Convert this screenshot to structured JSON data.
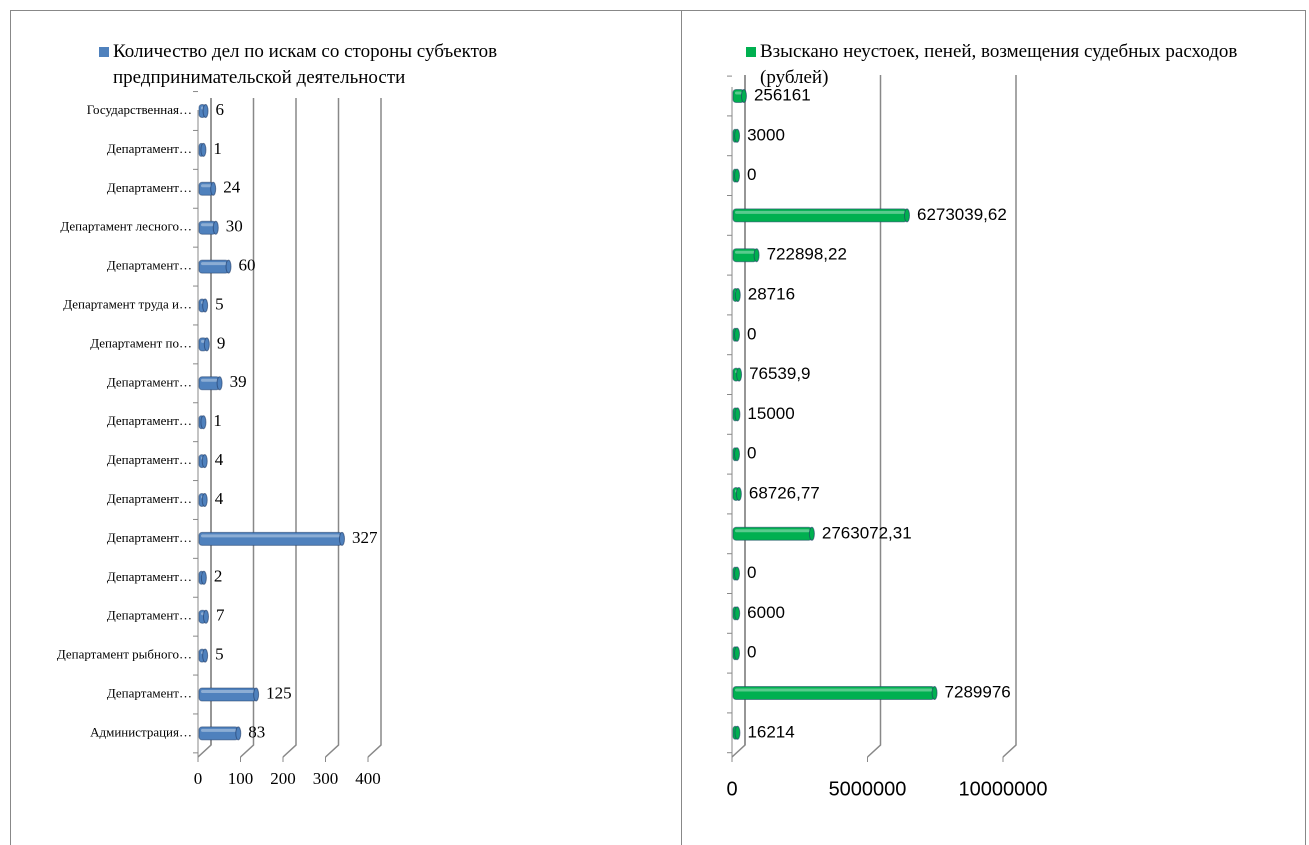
{
  "chart_data": [
    {
      "type": "bar",
      "orientation": "horizontal",
      "categories": [
        "Государственная…",
        "Департамент…",
        "Департамент…",
        "Департамент лесного…",
        "Департамент…",
        "Департамент труда и…",
        "Департамент по…",
        "Департамент…",
        "Департамент…",
        "Департамент…",
        "Департамент…",
        "Департамент…",
        "Департамент…",
        "Департамент…",
        "Департамент рыбного…",
        "Департамент…",
        "Администрация…"
      ],
      "series": [
        {
          "name": "Количество дел по искам со стороны субъектов предпринимательской деятельности",
          "color": "#4f81bd",
          "values": [
            6,
            1,
            24,
            30,
            60,
            5,
            9,
            39,
            1,
            4,
            4,
            327,
            2,
            7,
            5,
            125,
            83
          ]
        }
      ],
      "xlim": [
        0,
        400
      ],
      "xticks": [
        0,
        100,
        200,
        300,
        400
      ],
      "grid": true
    },
    {
      "type": "bar",
      "orientation": "horizontal",
      "series": [
        {
          "name": "Взыскано неустоек, пеней, возмещения судебных расходов (рублей)",
          "color": "#00b050",
          "values": [
            256161,
            3000,
            0,
            6273039.62,
            722898.22,
            28716,
            0,
            76539.9,
            15000,
            0,
            68726.77,
            2763072.31,
            0,
            6000,
            0,
            7289976,
            16214
          ],
          "value_labels": [
            "256161",
            "3000",
            "0",
            "6273039,62",
            "722898,22",
            "28716",
            "0",
            "76539,9",
            "15000",
            "0",
            "68726,77",
            "2763072,31",
            "0",
            "6000",
            "0",
            "7289976",
            "16214"
          ]
        }
      ],
      "xlim": [
        0,
        10000000
      ],
      "xticks": [
        0,
        5000000,
        10000000
      ],
      "grid": true
    }
  ]
}
